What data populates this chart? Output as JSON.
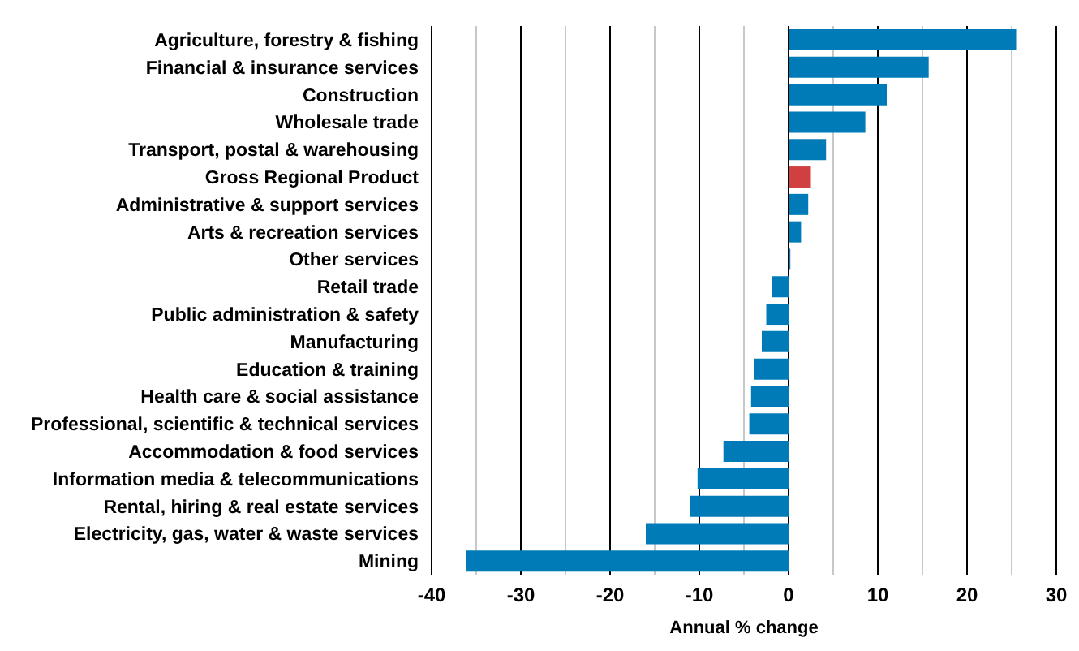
{
  "chart_data": {
    "type": "bar",
    "orientation": "horizontal",
    "xlabel": "Annual % change",
    "categories": [
      "Agriculture, forestry & fishing",
      "Financial & insurance services",
      "Construction",
      "Wholesale trade",
      "Transport, postal & warehousing",
      "Gross Regional Product",
      "Administrative & support services",
      "Arts & recreation services",
      "Other services",
      "Retail trade",
      "Public administration & safety",
      "Manufacturing",
      "Education & training",
      "Health care & social assistance",
      "Professional, scientific & technical services",
      "Accommodation & food services",
      "Information media & telecommunications",
      "Rental, hiring & real estate services",
      "Electricity, gas, water & waste services",
      "Mining"
    ],
    "values": [
      25.5,
      15.7,
      11.0,
      8.6,
      4.2,
      2.5,
      2.2,
      1.4,
      0.2,
      -1.9,
      -2.5,
      -3.0,
      -3.9,
      -4.2,
      -4.4,
      -7.3,
      -10.2,
      -11.0,
      -16.0,
      -36.1
    ],
    "colors": [
      "#007bb8",
      "#007bb8",
      "#007bb8",
      "#007bb8",
      "#007bb8",
      "#d04040",
      "#007bb8",
      "#007bb8",
      "#007bb8",
      "#007bb8",
      "#007bb8",
      "#007bb8",
      "#007bb8",
      "#007bb8",
      "#007bb8",
      "#007bb8",
      "#007bb8",
      "#007bb8",
      "#007bb8",
      "#007bb8"
    ],
    "xlim": [
      -40,
      30
    ],
    "xticks": [
      -40,
      {
        "value": -35,
        "label": null
      },
      -30,
      {
        "value": -25,
        "label": null
      },
      -20,
      {
        "value": -15,
        "label": null
      },
      -10,
      {
        "value": -5,
        "label": null
      },
      0,
      {
        "value": 5,
        "label": null
      },
      10,
      {
        "value": 15,
        "label": null
      },
      20,
      {
        "value": 25,
        "label": null
      },
      30
    ],
    "grid": "x"
  }
}
